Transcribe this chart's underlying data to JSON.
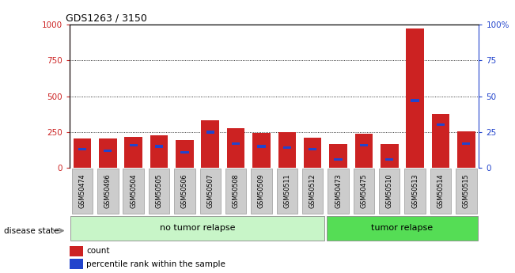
{
  "title": "GDS1263 / 3150",
  "samples": [
    "GSM50474",
    "GSM50496",
    "GSM50504",
    "GSM50505",
    "GSM50506",
    "GSM50507",
    "GSM50508",
    "GSM50509",
    "GSM50511",
    "GSM50512",
    "GSM50473",
    "GSM50475",
    "GSM50510",
    "GSM50513",
    "GSM50514",
    "GSM50515"
  ],
  "count_values": [
    205,
    205,
    215,
    230,
    195,
    330,
    275,
    245,
    250,
    210,
    165,
    240,
    165,
    975,
    375,
    255
  ],
  "percentile_values": [
    13,
    12,
    16,
    15,
    11,
    25,
    17,
    15,
    14,
    13,
    6,
    16,
    6,
    47,
    30,
    17
  ],
  "no_tumor_relapse_count": 10,
  "tumor_relapse_count": 6,
  "group_labels": [
    "no tumor relapse",
    "tumor relapse"
  ],
  "group_colors": [
    "#c8f5c8",
    "#55dd55"
  ],
  "bar_color_count": "#cc2222",
  "bar_color_percentile": "#2244cc",
  "ylim_left": [
    0,
    1000
  ],
  "ylim_right": [
    0,
    100
  ],
  "yticks_left": [
    0,
    250,
    500,
    750,
    1000
  ],
  "yticks_right": [
    0,
    25,
    50,
    75,
    100
  ],
  "ytick_labels_left": [
    "0",
    "250",
    "500",
    "750",
    "1000"
  ],
  "ytick_labels_right": [
    "0",
    "25",
    "50",
    "75",
    "100%"
  ],
  "disease_state_label": "disease state",
  "legend_count_label": "count",
  "legend_percentile_label": "percentile rank within the sample",
  "background_color": "#ffffff",
  "tick_label_bg": "#cccccc"
}
